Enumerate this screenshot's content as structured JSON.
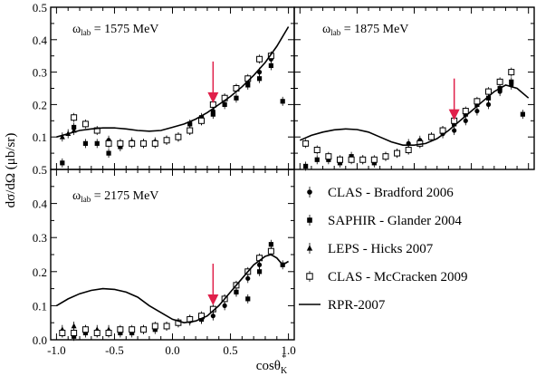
{
  "figure": {
    "ylabel": "dσ/dΩ (μb/sr)",
    "xlabel_main": "cosθ",
    "xlabel_sup": "*",
    "xlabel_sub": "K",
    "y_tick_labels": [
      "0.0",
      "0.1",
      "0.2",
      "0.3",
      "0.4",
      "0.5"
    ],
    "x_tick_labels": [
      "-1.0",
      "-0.5",
      "0.0",
      "0.5",
      "1.0"
    ],
    "arrow_color": "#e0204a",
    "legend": [
      {
        "label": "CLAS - Bradford 2006",
        "marker": "filled-circle"
      },
      {
        "label": "SAPHIR - Glander 2004",
        "marker": "filled-square"
      },
      {
        "label": "LEPS - Hicks 2007",
        "marker": "filled-triangle"
      },
      {
        "label": "CLAS - McCracken 2009",
        "marker": "open-square"
      },
      {
        "label": "RPR-2007",
        "marker": "line"
      }
    ]
  },
  "chart_data": [
    {
      "type": "scatter",
      "label_prefix": "ω",
      "label_sub": "lab",
      "label_suffix": " = 1575 MeV",
      "xlim": [
        -1.05,
        1.05
      ],
      "ylim": [
        0.0,
        0.5
      ],
      "arrow_x": 0.35,
      "series": [
        {
          "name": "CLAS - Bradford 2006",
          "marker": "filled-circle",
          "x": [
            -0.55,
            -0.45,
            -0.35,
            -0.25,
            -0.15,
            -0.05,
            0.05,
            0.15,
            0.25,
            0.35,
            0.45,
            0.55,
            0.65,
            0.75,
            0.85
          ],
          "y": [
            0.09,
            0.08,
            0.085,
            0.08,
            0.085,
            0.09,
            0.1,
            0.12,
            0.15,
            0.18,
            0.22,
            0.25,
            0.27,
            0.3,
            0.34
          ]
        },
        {
          "name": "SAPHIR - Glander 2004",
          "marker": "filled-square",
          "x": [
            -0.95,
            -0.85,
            -0.75,
            -0.65,
            -0.55,
            -0.45,
            -0.35,
            -0.25,
            -0.15,
            -0.05,
            0.05,
            0.15,
            0.25,
            0.35,
            0.45,
            0.55,
            0.65,
            0.75,
            0.85,
            0.95
          ],
          "y": [
            0.02,
            0.13,
            0.08,
            0.08,
            0.05,
            0.07,
            0.08,
            0.08,
            0.08,
            0.09,
            0.1,
            0.14,
            0.16,
            0.17,
            0.2,
            0.22,
            0.26,
            0.28,
            0.32,
            0.21
          ]
        },
        {
          "name": "LEPS - Hicks 2007",
          "marker": "filled-triangle",
          "x": [
            -0.95,
            -0.9,
            -0.85
          ],
          "y": [
            0.1,
            0.11,
            0.12
          ]
        },
        {
          "name": "CLAS - McCracken 2009",
          "marker": "open-square",
          "x": [
            -0.85,
            -0.75,
            -0.65,
            -0.55,
            -0.45,
            -0.35,
            -0.25,
            -0.15,
            -0.05,
            0.05,
            0.15,
            0.25,
            0.35,
            0.45,
            0.55,
            0.65,
            0.75,
            0.85
          ],
          "y": [
            0.16,
            0.14,
            0.12,
            0.08,
            0.08,
            0.08,
            0.08,
            0.08,
            0.09,
            0.1,
            0.12,
            0.15,
            0.2,
            0.22,
            0.25,
            0.28,
            0.34,
            0.35
          ]
        },
        {
          "name": "RPR-2007",
          "marker": "line",
          "x": [
            -1.0,
            -0.9,
            -0.8,
            -0.7,
            -0.6,
            -0.5,
            -0.4,
            -0.3,
            -0.2,
            -0.1,
            0.0,
            0.1,
            0.2,
            0.3,
            0.4,
            0.5,
            0.6,
            0.7,
            0.8,
            0.9,
            1.0
          ],
          "y": [
            0.1,
            0.11,
            0.12,
            0.125,
            0.128,
            0.128,
            0.125,
            0.12,
            0.118,
            0.12,
            0.13,
            0.14,
            0.155,
            0.175,
            0.2,
            0.225,
            0.255,
            0.29,
            0.33,
            0.38,
            0.44
          ]
        }
      ]
    },
    {
      "type": "scatter",
      "label_prefix": "ω",
      "label_sub": "lab",
      "label_suffix": " = 1875 MeV",
      "xlim": [
        -1.05,
        1.05
      ],
      "ylim": [
        0.0,
        0.5
      ],
      "arrow_x": 0.35,
      "series": [
        {
          "name": "CLAS - Bradford 2006",
          "marker": "filled-circle",
          "x": [
            -0.05,
            0.05,
            0.15,
            0.25,
            0.35,
            0.45,
            0.55,
            0.65,
            0.75,
            0.85
          ],
          "y": [
            0.08,
            0.09,
            0.1,
            0.11,
            0.12,
            0.15,
            0.18,
            0.2,
            0.24,
            0.26
          ]
        },
        {
          "name": "SAPHIR - Glander 2004",
          "marker": "filled-square",
          "x": [
            -0.95,
            -0.85,
            -0.75,
            -0.65,
            -0.55,
            -0.45,
            -0.35,
            -0.25,
            -0.15,
            -0.05,
            0.05,
            0.15,
            0.25,
            0.35,
            0.45,
            0.55,
            0.65,
            0.75,
            0.85,
            0.95
          ],
          "y": [
            0.01,
            0.03,
            0.03,
            0.02,
            0.04,
            0.03,
            0.02,
            0.04,
            0.05,
            0.06,
            0.08,
            0.1,
            0.12,
            0.14,
            0.17,
            0.2,
            0.22,
            0.25,
            0.27,
            0.17
          ]
        },
        {
          "name": "CLAS - McCracken 2009",
          "marker": "open-square",
          "x": [
            -0.95,
            -0.85,
            -0.75,
            -0.65,
            -0.55,
            -0.45,
            -0.35,
            -0.25,
            -0.15,
            -0.05,
            0.05,
            0.15,
            0.25,
            0.35,
            0.45,
            0.55,
            0.65,
            0.75,
            0.85
          ],
          "y": [
            0.08,
            0.06,
            0.04,
            0.03,
            0.03,
            0.03,
            0.03,
            0.04,
            0.05,
            0.06,
            0.08,
            0.1,
            0.12,
            0.15,
            0.18,
            0.21,
            0.24,
            0.27,
            0.3
          ]
        },
        {
          "name": "RPR-2007",
          "marker": "line",
          "x": [
            -1.0,
            -0.9,
            -0.8,
            -0.7,
            -0.6,
            -0.5,
            -0.4,
            -0.3,
            -0.2,
            -0.1,
            0.0,
            0.1,
            0.2,
            0.3,
            0.4,
            0.5,
            0.6,
            0.7,
            0.8,
            0.9,
            1.0
          ],
          "y": [
            0.09,
            0.105,
            0.115,
            0.122,
            0.125,
            0.123,
            0.115,
            0.1,
            0.085,
            0.075,
            0.075,
            0.08,
            0.095,
            0.12,
            0.15,
            0.18,
            0.21,
            0.24,
            0.26,
            0.25,
            0.22
          ]
        }
      ]
    },
    {
      "type": "scatter",
      "label_prefix": "ω",
      "label_sub": "lab",
      "label_suffix": " = 2175 MeV",
      "xlim": [
        -1.05,
        1.05
      ],
      "ylim": [
        0.0,
        0.5
      ],
      "arrow_x": 0.35,
      "series": [
        {
          "name": "CLAS - Bradford 2006",
          "marker": "filled-circle",
          "x": [
            0.15,
            0.25,
            0.35,
            0.45,
            0.55,
            0.65,
            0.75
          ],
          "y": [
            0.055,
            0.06,
            0.07,
            0.1,
            0.14,
            0.18,
            0.22
          ]
        },
        {
          "name": "SAPHIR - Glander 2004",
          "marker": "filled-square",
          "x": [
            -0.95,
            -0.85,
            -0.75,
            -0.65,
            -0.55,
            -0.45,
            -0.35,
            -0.25,
            -0.15,
            -0.05,
            0.05,
            0.15,
            0.25,
            0.35,
            0.45,
            0.55,
            0.65,
            0.75,
            0.85,
            0.95
          ],
          "y": [
            0.02,
            0.01,
            0.02,
            0.02,
            0.02,
            0.02,
            0.02,
            0.03,
            0.03,
            0.04,
            0.05,
            0.06,
            0.06,
            0.09,
            0.12,
            0.14,
            0.12,
            0.2,
            0.28,
            0.22
          ]
        },
        {
          "name": "LEPS - Hicks 2007",
          "marker": "filled-triangle",
          "x": [
            -0.95,
            -0.85,
            -0.75,
            -0.65,
            -0.55
          ],
          "y": [
            0.03,
            0.04,
            0.03,
            0.03,
            0.03
          ]
        },
        {
          "name": "CLAS - McCracken 2009",
          "marker": "open-square",
          "x": [
            -0.95,
            -0.85,
            -0.75,
            -0.65,
            -0.55,
            -0.45,
            -0.35,
            -0.25,
            -0.15,
            -0.05,
            0.05,
            0.15,
            0.25,
            0.35,
            0.45,
            0.55,
            0.65,
            0.75,
            0.85
          ],
          "y": [
            0.02,
            0.02,
            0.03,
            0.02,
            0.02,
            0.03,
            0.03,
            0.03,
            0.04,
            0.04,
            0.05,
            0.06,
            0.07,
            0.09,
            0.12,
            0.16,
            0.2,
            0.24,
            0.26
          ]
        },
        {
          "name": "RPR-2007",
          "marker": "line",
          "x": [
            -1.0,
            -0.9,
            -0.8,
            -0.7,
            -0.6,
            -0.5,
            -0.4,
            -0.3,
            -0.2,
            -0.1,
            0.0,
            0.1,
            0.2,
            0.3,
            0.4,
            0.5,
            0.6,
            0.7,
            0.8,
            0.85,
            0.9,
            0.95,
            1.0
          ],
          "y": [
            0.1,
            0.12,
            0.135,
            0.145,
            0.15,
            0.148,
            0.14,
            0.125,
            0.1,
            0.08,
            0.06,
            0.05,
            0.055,
            0.07,
            0.1,
            0.14,
            0.18,
            0.22,
            0.245,
            0.25,
            0.24,
            0.22,
            0.23
          ]
        }
      ]
    }
  ]
}
